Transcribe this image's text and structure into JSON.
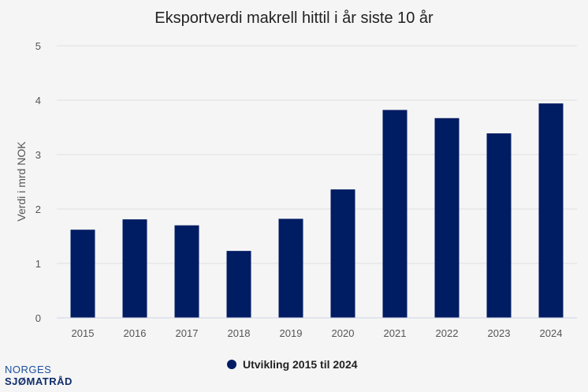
{
  "chart_data": {
    "type": "bar",
    "title": "Eksportverdi makrell hittil i år siste 10 år",
    "xlabel": "",
    "ylabel": "Verdi i mrd NOK",
    "ylim": [
      0,
      5
    ],
    "yticks": [
      "0",
      "1",
      "2",
      "3",
      "4",
      "5"
    ],
    "categories": [
      "2015",
      "2016",
      "2017",
      "2018",
      "2019",
      "2020",
      "2021",
      "2022",
      "2023",
      "2024"
    ],
    "series": [
      {
        "name": "Utvikling 2015 til 2024",
        "values": [
          1.62,
          1.81,
          1.7,
          1.23,
          1.82,
          2.36,
          3.82,
          3.67,
          3.39,
          3.94
        ]
      }
    ],
    "grid": true,
    "legend": "bottom-center"
  },
  "colors": {
    "bar": "#001c63",
    "background": "#f5f5f5"
  },
  "logo": {
    "line1": "NORGES",
    "line2": "SJØMATRÅD"
  }
}
